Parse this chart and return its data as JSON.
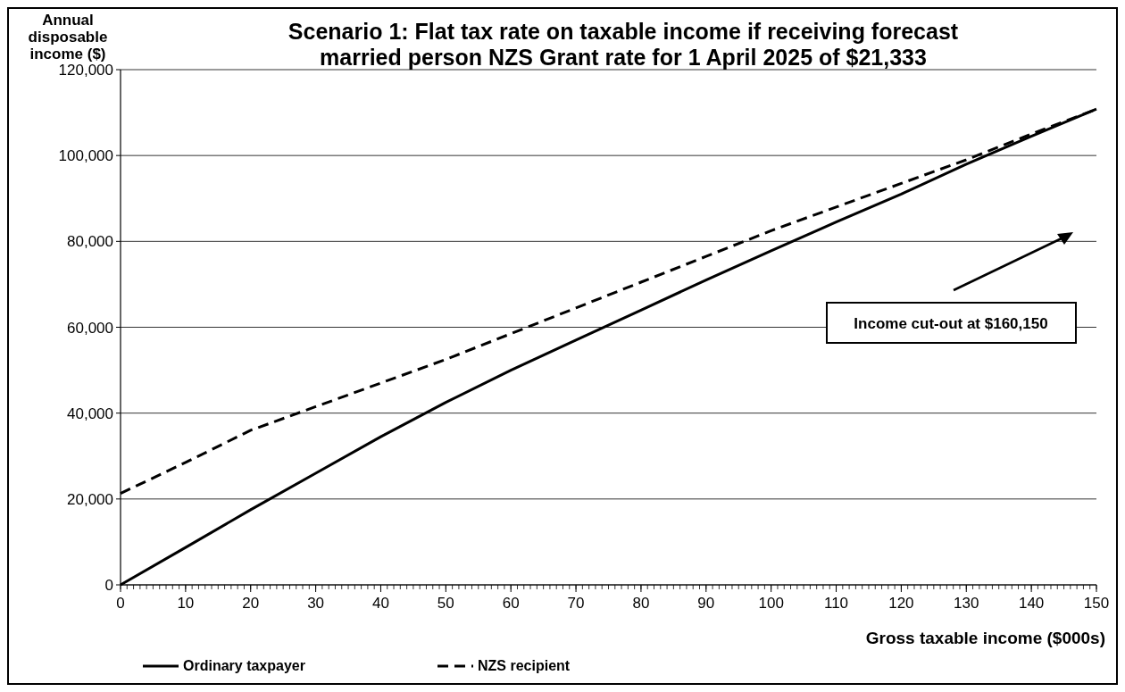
{
  "chart_data": {
    "type": "line",
    "title": "Scenario 1: Flat tax rate on taxable income if receiving forecast married person NZS Grant rate for 1 April 2025 of $21,333",
    "ylabel": "Annual disposable income ($)",
    "xlabel": "Gross taxable income ($000s)",
    "x": [
      0,
      10,
      20,
      30,
      40,
      50,
      60,
      70,
      80,
      90,
      100,
      110,
      120,
      130,
      140,
      150
    ],
    "series": [
      {
        "name": "Ordinary taxpayer",
        "color": "#000000",
        "line_style": "solid",
        "values": [
          0,
          8700,
          17500,
          26000,
          34500,
          42500,
          50000,
          57000,
          64000,
          71000,
          77800,
          84500,
          91000,
          98000,
          104500,
          110800
        ]
      },
      {
        "name": "NZS recipient",
        "color": "#000000",
        "line_style": "dashed",
        "values": [
          21300,
          28500,
          36000,
          41500,
          47000,
          52500,
          58500,
          64500,
          70500,
          76500,
          82500,
          88000,
          93500,
          99000,
          105000,
          110800
        ]
      }
    ],
    "xlim": [
      0,
      150
    ],
    "xticks": [
      0,
      10,
      20,
      30,
      40,
      50,
      60,
      70,
      80,
      90,
      100,
      110,
      120,
      130,
      140,
      150
    ],
    "ylim": [
      0,
      120000
    ],
    "yticks": [
      {
        "value": 0,
        "label": "0"
      },
      {
        "value": 20000,
        "label": "20,000"
      },
      {
        "value": 40000,
        "label": "40,000"
      },
      {
        "value": 60000,
        "label": "60,000"
      },
      {
        "value": 80000,
        "label": "80,000"
      },
      {
        "value": 100000,
        "label": "100,000"
      },
      {
        "value": 120000,
        "label": "120,000"
      }
    ],
    "grid": "y",
    "legend": "bottom",
    "marker": "none",
    "annotations": [
      "Income cut-out at $160,150"
    ]
  }
}
